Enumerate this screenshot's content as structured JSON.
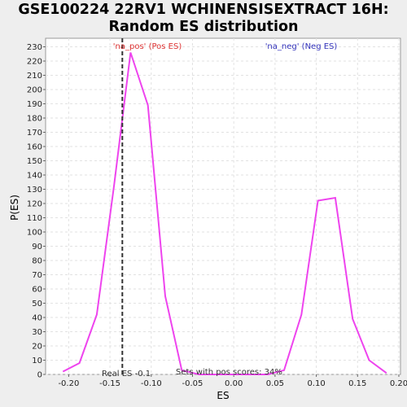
{
  "title_line1": "GSE100224 22RV1 WCHINENSISEXTRACT 16H:",
  "title_line2": "Random ES distribution",
  "chart_data": {
    "type": "line",
    "xlabel": "ES",
    "ylabel": "P(ES)",
    "xlim": [
      -0.228,
      0.202
    ],
    "ylim": [
      0,
      236
    ],
    "x_ticks": [
      -0.2,
      -0.15,
      -0.1,
      -0.05,
      0.0,
      0.05,
      0.1,
      0.15,
      0.2
    ],
    "x_tick_labels": [
      "-0.20",
      "-0.15",
      "-0.10",
      "-0.05",
      "0.00",
      "0.05",
      "0.10",
      "0.15",
      "0.20"
    ],
    "y_ticks": [
      0,
      10,
      20,
      30,
      40,
      50,
      60,
      70,
      80,
      90,
      100,
      110,
      120,
      130,
      140,
      150,
      160,
      170,
      180,
      190,
      200,
      210,
      220,
      230
    ],
    "grid": true,
    "series": [
      {
        "color": "#ee44ee",
        "x": [
          -0.207,
          -0.187,
          -0.166,
          -0.145,
          -0.125,
          -0.104,
          -0.083,
          -0.063,
          -0.042,
          -0.022,
          -0.001,
          0.02,
          0.041,
          0.061,
          0.082,
          0.102,
          0.123,
          0.144,
          0.164,
          0.185
        ],
        "y": [
          2,
          8,
          42,
          133,
          226,
          189,
          55,
          3,
          0,
          0,
          0,
          0,
          0,
          3,
          42,
          122,
          124,
          39,
          10,
          1
        ]
      }
    ],
    "real_es": -0.135,
    "annotations": {
      "pos_label": "'na_pos' (Pos ES)",
      "neg_label": "'na_neg' (Neg ES)",
      "real_es_label": "Real ES -0.1",
      "sets_label": "Sets with pos scores: 34%"
    },
    "colors": {
      "pos": "#dd3333",
      "neg": "#3333bb",
      "line": "#ee44ee"
    }
  }
}
